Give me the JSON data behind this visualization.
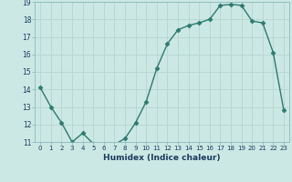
{
  "x": [
    0,
    1,
    2,
    3,
    4,
    5,
    6,
    7,
    8,
    9,
    10,
    11,
    12,
    13,
    14,
    15,
    16,
    17,
    18,
    19,
    20,
    21,
    22,
    23
  ],
  "y": [
    14.1,
    13.0,
    12.1,
    11.0,
    11.5,
    10.9,
    10.8,
    10.85,
    11.2,
    12.1,
    13.3,
    15.2,
    16.6,
    17.4,
    17.65,
    17.8,
    18.0,
    18.8,
    18.85,
    18.8,
    17.9,
    17.8,
    16.1,
    12.8
  ],
  "xlabel": "Humidex (Indice chaleur)",
  "ylabel": "",
  "ylim": [
    11,
    19
  ],
  "xlim": [
    -0.5,
    23.5
  ],
  "line_color": "#2d7a6e",
  "marker_color": "#2d7a6e",
  "bg_color": "#cce8e4",
  "grid_color": "#b8d8d4",
  "yticks": [
    11,
    12,
    13,
    14,
    15,
    16,
    17,
    18,
    19
  ],
  "xticks": [
    0,
    1,
    2,
    3,
    4,
    5,
    6,
    7,
    8,
    9,
    10,
    11,
    12,
    13,
    14,
    15,
    16,
    17,
    18,
    19,
    20,
    21,
    22,
    23
  ],
  "tick_label_color": "#1a3a5e",
  "xlabel_color": "#1a3a5e",
  "spine_color": "#88bbbb"
}
